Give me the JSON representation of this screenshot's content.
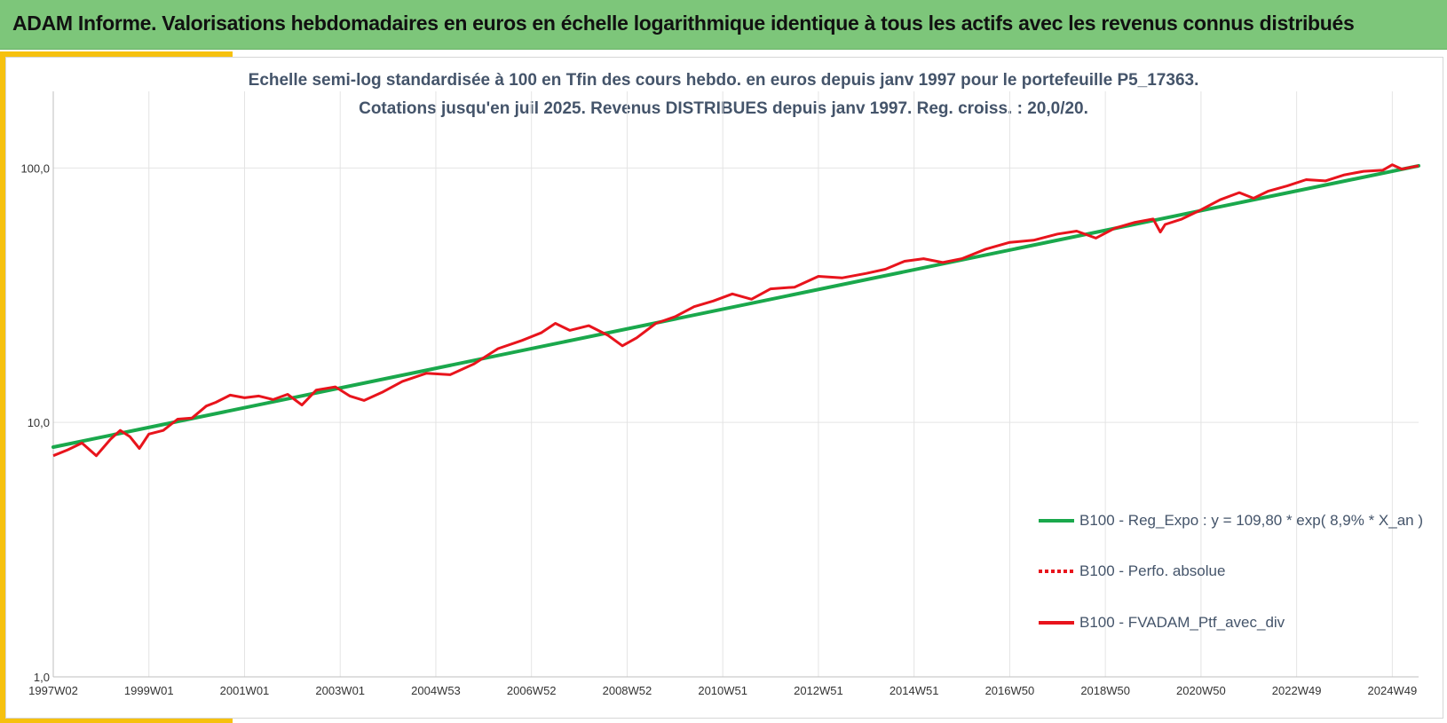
{
  "header": {
    "title": "ADAM Informe. Valorisations hebdomadaires en euros en échelle logarithmique identique à tous les actifs avec les revenus connus distribués"
  },
  "subtitle": {
    "line1": "Echelle semi-log standardisée à 100 en Tfin des cours hebdo.  en euros depuis janv 1997 pour le portefeuille P5_17363.",
    "line2": "Cotations jusqu'en juil 2025. Revenus DISTRIBUES depuis janv 1997. Reg. croiss. : 20,0/20."
  },
  "colors": {
    "regression": "#1aa84c",
    "portfolio": "#e8141c",
    "grid": "#e4e4e4",
    "banner": "#7dc67a",
    "accent": "#f6c10f",
    "text": "#44546a"
  },
  "chart_data": {
    "type": "line",
    "yscale": "log",
    "ylim": [
      1,
      200
    ],
    "xlim": [
      1997.0,
      2025.55
    ],
    "yticks": [
      {
        "value": 1,
        "label": "1,0"
      },
      {
        "value": 10,
        "label": "10,0"
      },
      {
        "value": 100,
        "label": "100,0"
      }
    ],
    "xticks": [
      {
        "value": 1997.0,
        "label": "1997W02"
      },
      {
        "value": 1999.0,
        "label": "1999W01"
      },
      {
        "value": 2001.0,
        "label": "2001W01"
      },
      {
        "value": 2003.0,
        "label": "2003W01"
      },
      {
        "value": 2005.0,
        "label": "2004W53"
      },
      {
        "value": 2007.0,
        "label": "2006W52"
      },
      {
        "value": 2009.0,
        "label": "2008W52"
      },
      {
        "value": 2011.0,
        "label": "2010W51"
      },
      {
        "value": 2013.0,
        "label": "2012W51"
      },
      {
        "value": 2015.0,
        "label": "2014W51"
      },
      {
        "value": 2017.0,
        "label": "2016W50"
      },
      {
        "value": 2019.0,
        "label": "2018W50"
      },
      {
        "value": 2021.0,
        "label": "2020W50"
      },
      {
        "value": 2023.0,
        "label": "2022W49"
      },
      {
        "value": 2025.0,
        "label": "2024W49"
      }
    ],
    "grid": true,
    "legend_position": "bottom-right",
    "series": [
      {
        "name": "B100 - Reg_Expo : y = 109,80 * exp( 8,9% *  X_an )",
        "style": "solid-thick",
        "x": [
          1997.0,
          2025.55
        ],
        "y": [
          8.0,
          102.0
        ]
      },
      {
        "name": "B100 - Perfo. absolue",
        "style": "dotted",
        "x": [],
        "y": []
      },
      {
        "name": "B100 - FVADAM_Ptf_avec_div",
        "style": "solid",
        "x": [
          1997.0,
          1997.3,
          1997.6,
          1997.9,
          1998.2,
          1998.4,
          1998.6,
          1998.8,
          1999.0,
          1999.3,
          1999.6,
          1999.9,
          2000.2,
          2000.4,
          2000.7,
          2001.0,
          2001.3,
          2001.6,
          2001.9,
          2002.2,
          2002.5,
          2002.9,
          2003.2,
          2003.5,
          2003.9,
          2004.3,
          2004.8,
          2005.3,
          2005.8,
          2006.3,
          2006.8,
          2007.2,
          2007.5,
          2007.8,
          2008.2,
          2008.6,
          2008.9,
          2009.2,
          2009.6,
          2010.0,
          2010.4,
          2010.8,
          2011.2,
          2011.6,
          2012.0,
          2012.5,
          2013.0,
          2013.5,
          2014.0,
          2014.4,
          2014.8,
          2015.2,
          2015.6,
          2016.0,
          2016.5,
          2017.0,
          2017.5,
          2018.0,
          2018.4,
          2018.8,
          2019.2,
          2019.6,
          2020.0,
          2020.15,
          2020.25,
          2020.6,
          2021.0,
          2021.4,
          2021.8,
          2022.1,
          2022.4,
          2022.8,
          2023.2,
          2023.6,
          2024.0,
          2024.4,
          2024.8,
          2025.0,
          2025.2,
          2025.55
        ],
        "y": [
          7.4,
          7.8,
          8.3,
          7.4,
          8.6,
          9.3,
          8.8,
          7.9,
          9.0,
          9.3,
          10.3,
          10.4,
          11.6,
          12.0,
          12.8,
          12.5,
          12.7,
          12.3,
          12.9,
          11.7,
          13.4,
          13.8,
          12.7,
          12.2,
          13.2,
          14.5,
          15.6,
          15.4,
          17.0,
          19.5,
          21.0,
          22.5,
          24.5,
          23.0,
          24.0,
          22.0,
          20.0,
          21.5,
          24.5,
          26.0,
          28.5,
          30.0,
          32.0,
          30.5,
          33.5,
          34.0,
          37.5,
          37.0,
          38.5,
          40.0,
          43.0,
          44.0,
          42.5,
          44.0,
          48.0,
          51.0,
          52.0,
          55.0,
          56.5,
          53.0,
          58.0,
          61.0,
          63.0,
          56.0,
          60.0,
          63.0,
          68.5,
          75.0,
          80.0,
          76.0,
          81.0,
          85.0,
          90.0,
          89.0,
          94.0,
          97.0,
          98.0,
          103.0,
          99.0,
          102.0
        ]
      }
    ]
  }
}
